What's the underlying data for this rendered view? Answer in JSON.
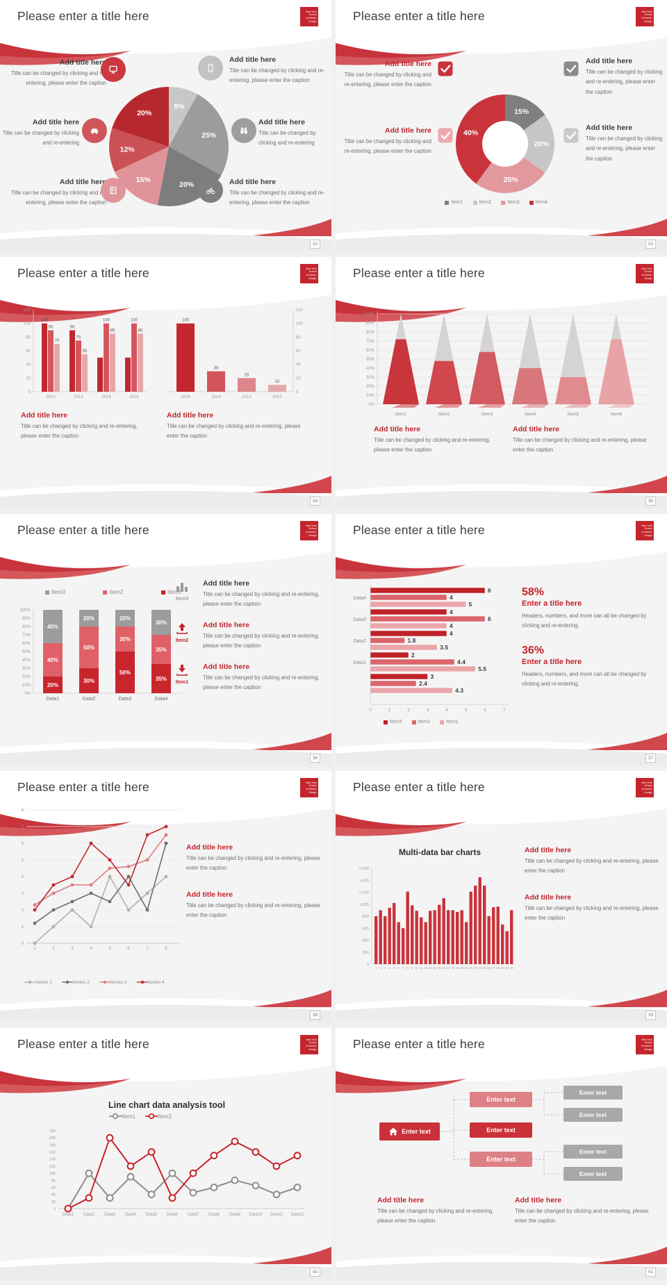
{
  "common": {
    "slide_title": "Please enter a title here",
    "add_title": "Add title here",
    "caption_full": "Title can be changed by clicking and re-entering, please enter the caption",
    "caption_short": "Title can be changed by clicking and re-entering"
  },
  "logo": {
    "lines": [
      "New York",
      "School",
      "of Interior",
      "Design"
    ],
    "bg": "#c4252b"
  },
  "colors": {
    "accent_red": "#c0262d",
    "red_medium": "#d4565c",
    "red_light": "#e6a7ab",
    "gray_dark": "#7d7d7d",
    "gray_mid": "#9c9c9c",
    "gray_light": "#c7c7c7",
    "caption_gray": "#6e6e6e"
  },
  "slides": [
    {
      "page_number": "32",
      "callouts": [
        {
          "title": "Add title here",
          "caption": "Title can be changed by clicking and re-entering, please enter the caption",
          "icon": "monitor-icon",
          "icon_color": "#c9393f"
        },
        {
          "title": "Add title here",
          "caption": "Title can be changed by clicking and re-entering",
          "icon": "car-icon",
          "icon_color": "#d0565c"
        },
        {
          "title": "Add title here",
          "caption": "Title can be changed by clicking and re-entering, please enter the caption",
          "icon": "book-icon",
          "icon_color": "#e0959a"
        },
        {
          "title": "Add title here",
          "caption": "Title can be changed by clicking and re-entering, please enter the caption",
          "icon": "smartphone-icon",
          "icon_color": "#c2c2c2"
        },
        {
          "title": "Add title here",
          "caption": "Title can be changed by clicking and re-entering",
          "icon": "binoculars-icon",
          "icon_color": "#9e9e9e"
        },
        {
          "title": "Add title here",
          "caption": "Title can be changed by clicking and re-entering, please enter the caption",
          "icon": "bicycle-icon",
          "icon_color": "#7f7f7f"
        }
      ]
    },
    {
      "page_number": "33",
      "callouts": [
        {
          "title": "Add title here",
          "caption": "Title can be changed by clicking and re-entering, please enter the caption",
          "title_color": "#c0262d",
          "check_color": "#c9343a"
        },
        {
          "title": "Add title here",
          "caption": "Title can be changed by clicking and re-entering, please enter the caption",
          "title_color": "#c0262d",
          "check_color": "#eda9ad"
        },
        {
          "title": "Add title here",
          "caption": "Title can be changed by clicking and re-entering, please enter the caption",
          "title_color": "#3d3d3d",
          "check_color": "#8a8a8a"
        },
        {
          "title": "Add title here",
          "caption": "Title can be changed by clicking and re-entering, please enter the caption",
          "title_color": "#3d3d3d",
          "check_color": "#c9c9c9"
        }
      ]
    },
    {
      "page_number": "34",
      "callouts": [
        {
          "title": "Add title here",
          "caption": "Title can be changed by clicking and re-entering, please enter the caption"
        },
        {
          "title": "Add title here",
          "caption": "Title can be changed by clicking and re-entering, please enter the caption"
        }
      ]
    },
    {
      "page_number": "35",
      "callouts": [
        {
          "title": "Add title here",
          "caption": "Title can be changed by clicking and re-entering, please enter the caption"
        },
        {
          "title": "Add title here",
          "caption": "Title can be changed by clicking and re-entering, please enter the caption"
        }
      ]
    },
    {
      "page_number": "36",
      "features": [
        {
          "icon": "bar-chart-icon",
          "item_label": "Item3",
          "label_color": "#9c9c9c",
          "title": "Add title here",
          "title_color": "#3d3d3d",
          "caption": "Title can be changed by clicking and re-entering, please enter the caption"
        },
        {
          "icon": "arrow-up-icon",
          "item_label": "Item2",
          "label_color": "#c5232b",
          "title": "Add title here",
          "title_color": "#c0262d",
          "caption": "Title can be changed by clicking and re-entering, please enter the caption"
        },
        {
          "icon": "arrow-down-icon",
          "item_label": "Item1",
          "label_color": "#c5232b",
          "title": "Add title here",
          "title_color": "#c0262d",
          "caption": "Title can be changed by clicking and re-entering, please enter the caption"
        }
      ]
    },
    {
      "page_number": "37",
      "stats": [
        {
          "pct": "58%",
          "title": "Enter a title here",
          "caption": "Headers, numbers, and more can all be changed by clicking and re-entering."
        },
        {
          "pct": "36%",
          "title": "Enter a title here",
          "caption": "Headers, numbers, and more can all be changed by clicking and re-entering."
        }
      ]
    },
    {
      "page_number": "38",
      "callouts": [
        {
          "title": "Add title here",
          "caption": "Title can be changed by clicking and re-entering, please enter the caption"
        },
        {
          "title": "Add title here",
          "caption": "Title can be changed by clicking and re-entering, please enter the caption"
        }
      ]
    },
    {
      "page_number": "39",
      "callouts": [
        {
          "title": "Add title here",
          "caption": "Title can be changed by clicking and re-entering, please enter the caption"
        },
        {
          "title": "Add title here",
          "caption": "Title can be changed by clicking and re-entering, please enter the caption"
        }
      ]
    },
    {
      "page_number": "40"
    },
    {
      "page_number": "41",
      "diagram": {
        "home_label": "Enter text",
        "mid_boxes": [
          {
            "label": "Enter text",
            "color": "#dd8187"
          },
          {
            "label": "Enter text",
            "color": "#cb3138"
          },
          {
            "label": "Enter text",
            "color": "#dd8187"
          }
        ],
        "right_boxes": [
          {
            "label": "Enter text",
            "color": "#a8a8a8"
          },
          {
            "label": "Enter text",
            "color": "#a8a8a8"
          },
          {
            "label": "Enter text",
            "color": "#a8a8a8"
          },
          {
            "label": "Enter text",
            "color": "#a8a8a8"
          }
        ]
      },
      "callouts": [
        {
          "title": "Add title here",
          "caption": "Title can be changed by clicking and re-entering, please enter the caption"
        },
        {
          "title": "Add title here",
          "caption": "Title can be changed by clicking and re-entering, please enter the caption"
        }
      ]
    }
  ],
  "chart_data": [
    {
      "type": "pie",
      "slide_page": "32",
      "values": [
        8,
        25,
        20,
        15,
        12,
        20
      ],
      "labels": [
        "8%",
        "25%",
        "20%",
        "15%",
        "12%",
        "20%"
      ],
      "colors": [
        "#c7c7c7",
        "#9c9c9c",
        "#7d7d7d",
        "#e09499",
        "#cc5157",
        "#b7282e"
      ],
      "start_angle": -90,
      "direction": "clockwise"
    },
    {
      "type": "pie",
      "subtype": "donut",
      "slide_page": "33",
      "values": [
        15,
        20,
        25,
        40
      ],
      "labels": [
        "15%",
        "20%",
        "25%",
        "40%"
      ],
      "colors": [
        "#7f7f7f",
        "#c6c6c6",
        "#e2999e",
        "#c9343a"
      ],
      "legend": [
        "Item1",
        "Item2",
        "Item3",
        "Item4"
      ],
      "legend_colors": [
        "#7f7f7f",
        "#c6c6c6",
        "#e2999e",
        "#c9343a"
      ]
    },
    {
      "type": "bar",
      "subtype": "grouped",
      "slide_page": "34",
      "categories": [
        "2010",
        "2012",
        "2014",
        "2016"
      ],
      "group_values": [
        [
          100,
          90,
          70
        ],
        [
          90,
          75,
          55
        ],
        [
          50,
          100,
          85
        ],
        [
          50,
          100,
          85
        ]
      ],
      "group_labels": [
        [
          100,
          90,
          70
        ],
        [
          90,
          75,
          55
        ],
        [
          null,
          100,
          85
        ],
        [
          null,
          100,
          85
        ]
      ],
      "series_colors": [
        "#c2272e",
        "#d4565c",
        "#e6a7ab"
      ],
      "ylim": [
        0,
        120
      ],
      "ytick_step": 20,
      "y_axis_side": "left"
    },
    {
      "type": "bar",
      "slide_page": "34",
      "categories": [
        "2016",
        "2014",
        "2012",
        "2010"
      ],
      "values": [
        100,
        30,
        20,
        10
      ],
      "colors": [
        "#c2272e",
        "#d4565c",
        "#de868b",
        "#e6a7ab"
      ],
      "ylim": [
        0,
        120
      ],
      "ytick_step": 20,
      "y_axis_side": "right"
    },
    {
      "type": "bar",
      "subtype": "cone",
      "slide_page": "35",
      "categories": [
        "Item1",
        "Item2",
        "Item3",
        "Item4",
        "Item5",
        "Item6"
      ],
      "values_pct": [
        72,
        48,
        58,
        40,
        30,
        72
      ],
      "cone_colors": [
        "#c8363c",
        "#d0474d",
        "#d25a60",
        "#d9777c",
        "#e08b90",
        "#e8a3a7"
      ],
      "tip_color": "#d5d3d3",
      "ylim": [
        0,
        100
      ],
      "ytick_step": 10
    },
    {
      "type": "bar",
      "subtype": "stacked-100",
      "slide_page": "36",
      "categories": [
        "Data1",
        "Data2",
        "Data3",
        "Data4"
      ],
      "series": [
        {
          "name": "Item1",
          "color": "#c9252c",
          "values": [
            20,
            30,
            50,
            35
          ]
        },
        {
          "name": "Item2",
          "color": "#e06067",
          "values": [
            40,
            50,
            30,
            35
          ]
        },
        {
          "name": "Item3",
          "color": "#9c9c9c",
          "values": [
            40,
            20,
            20,
            30
          ]
        }
      ],
      "legend_order": [
        "Item3",
        "Item2",
        "Item1"
      ],
      "ylim": [
        0,
        100
      ],
      "ytick_step": 10
    },
    {
      "type": "bar",
      "subtype": "horizontal",
      "slide_page": "37",
      "groups": [
        {
          "label": "Data4",
          "values": [
            6,
            4,
            5
          ]
        },
        {
          "label": "Data3",
          "values": [
            4,
            6,
            4
          ]
        },
        {
          "label": "Data2",
          "values": [
            4,
            1.8,
            3.5
          ]
        },
        {
          "label": "Data1",
          "values": [
            2,
            4.4,
            5.5
          ]
        },
        {
          "label": "",
          "values": [
            3,
            2.4,
            4.3
          ]
        }
      ],
      "series_names": [
        "Item3",
        "Item2",
        "Item1"
      ],
      "series_colors": [
        "#bf2228",
        "#da656b",
        "#eba6aa"
      ],
      "xlim": [
        0,
        7
      ]
    },
    {
      "type": "line",
      "slide_page": "38",
      "x": [
        1,
        2,
        3,
        4,
        5,
        6,
        7,
        8
      ],
      "series": [
        {
          "name": "Series 1",
          "color": "#b0b0b0",
          "values": [
            0,
            1,
            2,
            1,
            4,
            2,
            3,
            4
          ]
        },
        {
          "name": "Series 2",
          "color": "#6e6e6e",
          "values": [
            1.2,
            2,
            2.5,
            3,
            2.5,
            4,
            2,
            6
          ]
        },
        {
          "name": "Series 3",
          "color": "#dd7b81",
          "values": [
            2.3,
            3,
            3.5,
            3.5,
            4.5,
            4.6,
            5,
            6.5
          ]
        },
        {
          "name": "Series 4",
          "color": "#c1272d",
          "values": [
            2,
            3.5,
            4,
            6,
            5,
            3.5,
            6.5,
            7
          ]
        }
      ],
      "ylim": [
        0,
        8
      ],
      "ytick_step": 1
    },
    {
      "type": "bar",
      "slide_page": "39",
      "title": "Multi-data bar charts",
      "x_labels": [
        "1",
        "2",
        "3",
        "4",
        "5",
        "6",
        "7",
        "8",
        "9",
        "10",
        "11",
        "12",
        "13",
        "14",
        "15",
        "16",
        "17",
        "18",
        "19",
        "20",
        "21",
        "22",
        "23",
        "24",
        "25",
        "26",
        "27",
        "28",
        "29",
        "30",
        "31"
      ],
      "values": [
        800,
        900,
        800,
        940,
        1020,
        700,
        600,
        1210,
        980,
        890,
        780,
        700,
        890,
        900,
        990,
        1100,
        900,
        900,
        870,
        900,
        700,
        1210,
        1310,
        1450,
        1310,
        800,
        950,
        960,
        660,
        550,
        900
      ],
      "color": "#c9333a",
      "ylim": [
        0,
        1600
      ],
      "ytick_step": 200
    },
    {
      "type": "line",
      "slide_page": "40",
      "title": "Line chart data analysis tool",
      "categories": [
        "Data1",
        "Data2",
        "Data3",
        "Data4",
        "Data5",
        "Data6",
        "Data7",
        "Data8",
        "Data9",
        "Data10",
        "Data11",
        "Data12"
      ],
      "series": [
        {
          "name": "Item1",
          "color": "#8c8c8c",
          "values": [
            0,
            100,
            30,
            90,
            40,
            100,
            45,
            60,
            80,
            65,
            40,
            60
          ]
        },
        {
          "name": "Item2",
          "color": "#c5232b",
          "values": [
            0,
            30,
            200,
            120,
            160,
            30,
            100,
            150,
            190,
            160,
            120,
            150
          ]
        }
      ],
      "ylim": [
        0,
        220
      ],
      "ytick_step": 20,
      "marker": "open-circle"
    }
  ]
}
